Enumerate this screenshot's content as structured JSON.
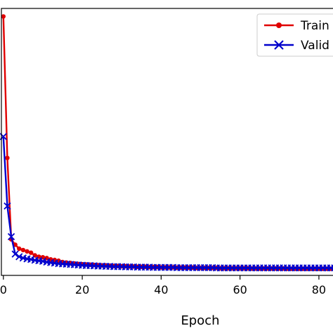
{
  "chart_data": {
    "type": "line",
    "title": "",
    "xlabel": "Epoch",
    "ylabel": "",
    "xlim": [
      -0.5,
      85
    ],
    "ylim": [
      0,
      1
    ],
    "x_ticks": [
      0,
      20,
      40,
      60,
      80
    ],
    "x_tick_labels": [
      "0",
      "20",
      "40",
      "60",
      "80"
    ],
    "grid": false,
    "legend_position": "top-right",
    "series": [
      {
        "name": "Train",
        "color": "#e00000",
        "marker": "circle",
        "x": [
          0,
          1,
          2,
          3,
          4,
          5,
          6,
          7,
          8,
          9,
          10,
          11,
          12,
          13,
          14,
          15,
          16,
          17,
          18,
          19,
          20,
          21,
          22,
          23,
          24,
          25,
          26,
          27,
          28,
          29,
          30,
          31,
          32,
          33,
          34,
          35,
          36,
          37,
          38,
          39,
          40,
          41,
          42,
          43,
          44,
          45,
          46,
          47,
          48,
          49,
          50,
          51,
          52,
          53,
          54,
          55,
          56,
          57,
          58,
          59,
          60,
          61,
          62,
          63,
          64,
          65,
          66,
          67,
          68,
          69,
          70,
          71,
          72,
          73,
          74,
          75,
          76,
          77,
          78,
          79,
          80,
          81,
          82,
          83,
          84,
          85
        ],
        "values": [
          0.97,
          0.44,
          0.135,
          0.115,
          0.1,
          0.095,
          0.09,
          0.085,
          0.075,
          0.07,
          0.068,
          0.065,
          0.06,
          0.058,
          0.055,
          0.05,
          0.048,
          0.047,
          0.045,
          0.043,
          0.042,
          0.041,
          0.04,
          0.039,
          0.038,
          0.037,
          0.037,
          0.036,
          0.035,
          0.035,
          0.034,
          0.034,
          0.033,
          0.033,
          0.032,
          0.032,
          0.032,
          0.031,
          0.031,
          0.031,
          0.03,
          0.03,
          0.03,
          0.03,
          0.029,
          0.029,
          0.029,
          0.029,
          0.029,
          0.028,
          0.028,
          0.028,
          0.028,
          0.028,
          0.028,
          0.027,
          0.027,
          0.027,
          0.027,
          0.027,
          0.027,
          0.027,
          0.027,
          0.026,
          0.026,
          0.026,
          0.026,
          0.026,
          0.026,
          0.026,
          0.026,
          0.026,
          0.025,
          0.025,
          0.025,
          0.025,
          0.025,
          0.025,
          0.025,
          0.025,
          0.025,
          0.025,
          0.025,
          0.025,
          0.025,
          0.025
        ]
      },
      {
        "name": "Valid",
        "color": "#0000cc",
        "marker": "x",
        "x": [
          0,
          1,
          2,
          3,
          4,
          5,
          6,
          7,
          8,
          9,
          10,
          11,
          12,
          13,
          14,
          15,
          16,
          17,
          18,
          19,
          20,
          21,
          22,
          23,
          24,
          25,
          26,
          27,
          28,
          29,
          30,
          31,
          32,
          33,
          34,
          35,
          36,
          37,
          38,
          39,
          40,
          41,
          42,
          43,
          44,
          45,
          46,
          47,
          48,
          49,
          50,
          51,
          52,
          53,
          54,
          55,
          56,
          57,
          58,
          59,
          60,
          61,
          62,
          63,
          64,
          65,
          66,
          67,
          68,
          69,
          70,
          71,
          72,
          73,
          74,
          75,
          76,
          77,
          78,
          79,
          80,
          81,
          82,
          83,
          84,
          85
        ],
        "values": [
          0.52,
          0.26,
          0.145,
          0.08,
          0.07,
          0.065,
          0.062,
          0.06,
          0.057,
          0.055,
          0.053,
          0.05,
          0.048,
          0.046,
          0.044,
          0.043,
          0.042,
          0.041,
          0.04,
          0.039,
          0.038,
          0.037,
          0.037,
          0.036,
          0.035,
          0.035,
          0.034,
          0.034,
          0.033,
          0.033,
          0.033,
          0.032,
          0.032,
          0.032,
          0.031,
          0.031,
          0.031,
          0.031,
          0.03,
          0.03,
          0.03,
          0.03,
          0.03,
          0.03,
          0.029,
          0.029,
          0.029,
          0.029,
          0.029,
          0.029,
          0.029,
          0.029,
          0.029,
          0.029,
          0.028,
          0.028,
          0.028,
          0.028,
          0.028,
          0.028,
          0.028,
          0.028,
          0.028,
          0.028,
          0.028,
          0.028,
          0.028,
          0.028,
          0.028,
          0.028,
          0.028,
          0.028,
          0.028,
          0.028,
          0.028,
          0.028,
          0.028,
          0.028,
          0.028,
          0.028,
          0.028,
          0.028,
          0.028,
          0.028,
          0.028,
          0.028
        ]
      }
    ],
    "legend": {
      "entries": [
        "Train",
        "Valid"
      ]
    }
  }
}
